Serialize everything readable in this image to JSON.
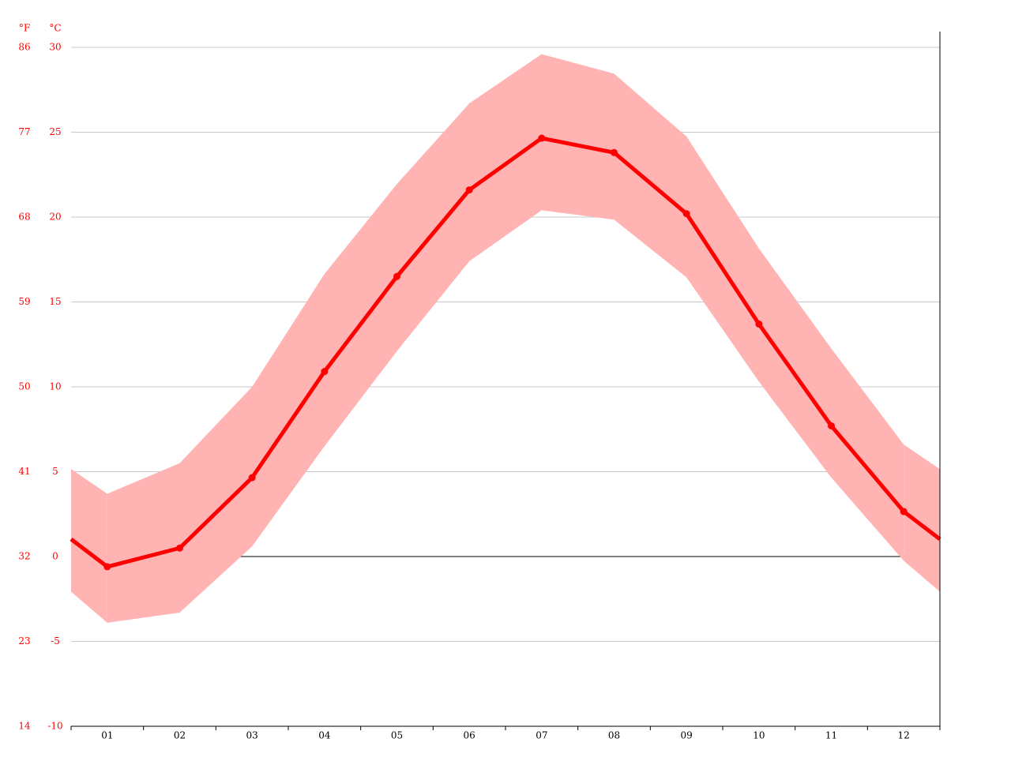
{
  "chart_data": {
    "type": "line",
    "ylabel": "°C",
    "y2label": "°F",
    "categories": [
      "01",
      "02",
      "03",
      "04",
      "05",
      "06",
      "07",
      "08",
      "09",
      "10",
      "11",
      "12"
    ],
    "series": [
      {
        "color": "#ff0000",
        "values": [
          -0.6,
          0.5,
          4.65,
          10.9,
          16.5,
          21.6,
          24.65,
          23.8,
          20.2,
          13.7,
          7.7,
          2.65
        ]
      }
    ],
    "range": {
      "color": "#ffb3b3",
      "max": [
        3.7,
        5.5,
        10.0,
        16.65,
        21.95,
        26.7,
        29.6,
        28.45,
        24.75,
        18.15,
        12.25,
        6.6
      ],
      "min": [
        -3.9,
        -3.3,
        0.6,
        6.5,
        12.1,
        17.4,
        20.4,
        19.85,
        16.45,
        10.3,
        4.65,
        -0.25
      ]
    },
    "ylim": [
      -10,
      30
    ],
    "yticks": [
      -10,
      -5,
      0,
      5,
      10,
      15,
      20,
      25,
      30
    ],
    "y2lim": [
      14,
      86
    ],
    "y2ticks": [
      14,
      23,
      32,
      41,
      50,
      59,
      68,
      77,
      86
    ],
    "grid": true
  }
}
